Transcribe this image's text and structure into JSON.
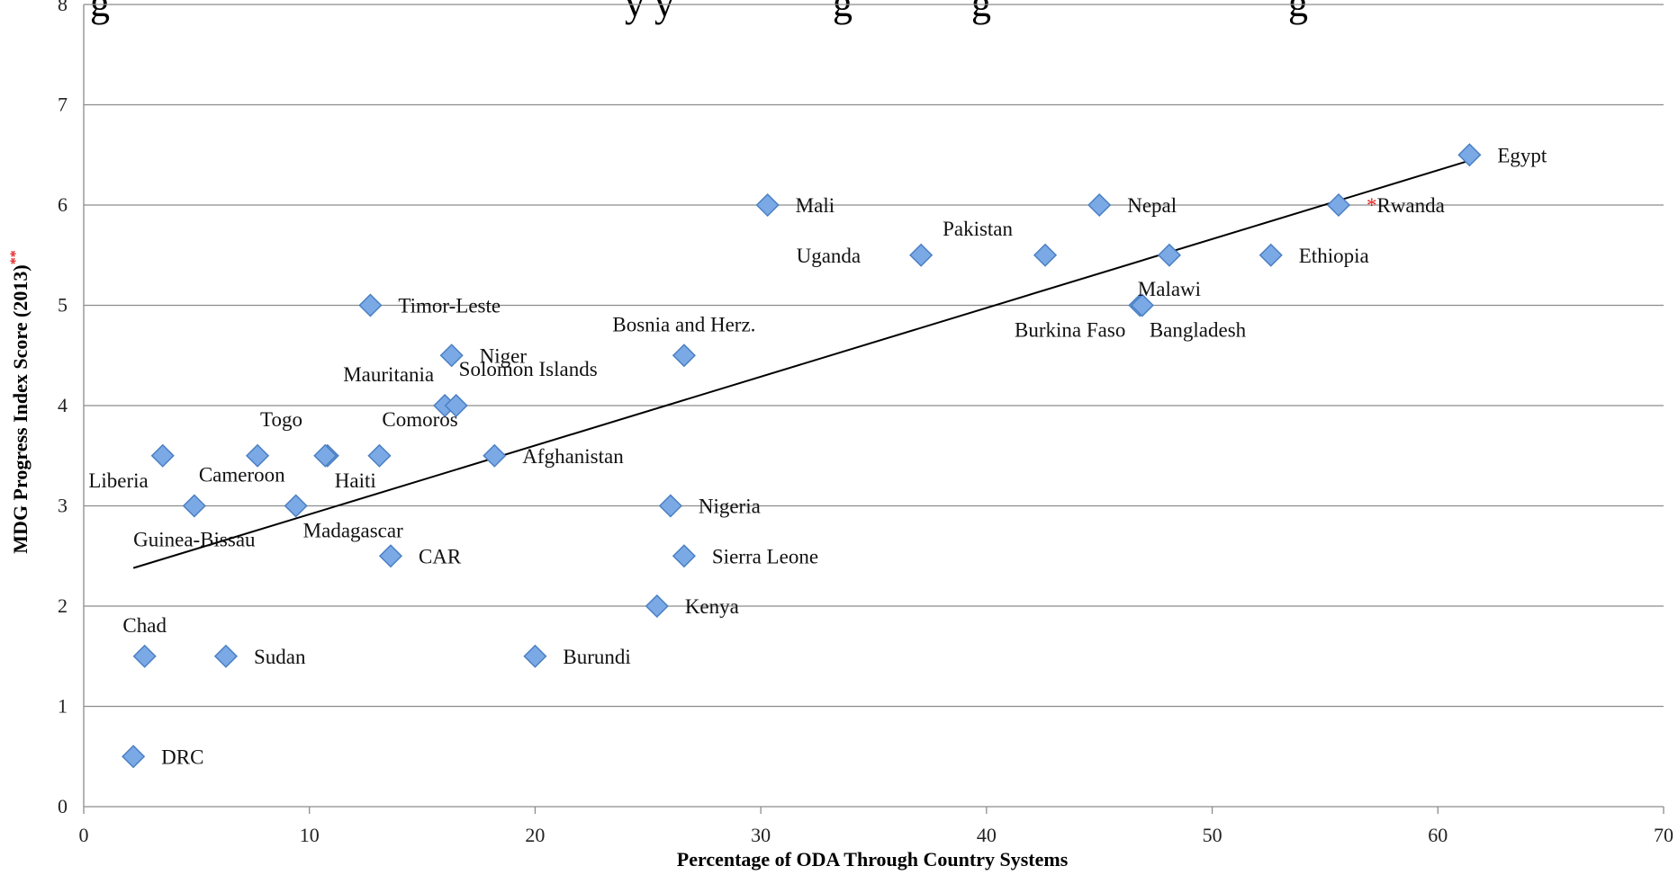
{
  "chart_data": {
    "type": "scatter",
    "title_partial": "g                                                    y y                g            g                              g",
    "xlabel": "Percentage of ODA Through Country Systems",
    "ylabel": "MDG Progress Index Score (2013)",
    "ylabel_marker": "**",
    "xlim": [
      0,
      70
    ],
    "ylim": [
      0,
      8
    ],
    "xticks": [
      "0",
      "10",
      "20",
      "30",
      "40",
      "50",
      "60",
      "70"
    ],
    "yticks": [
      "0",
      "1",
      "2",
      "3",
      "4",
      "5",
      "6",
      "7",
      "8"
    ],
    "grid": "horizontal",
    "colors": {
      "marker_fill": "#7aa9e6",
      "marker_stroke": "#4a7fc2",
      "gridline": "#8c8c8c",
      "trendline": "#000000",
      "asterisk": "#e02020"
    },
    "trendline": {
      "x": [
        2.2,
        61.5
      ],
      "y": [
        2.38,
        6.45
      ]
    },
    "points": [
      {
        "label": "DRC",
        "x": 2.2,
        "y": 0.5,
        "label_pos": "right"
      },
      {
        "label": "Chad",
        "x": 2.7,
        "y": 1.5,
        "label_pos": "above"
      },
      {
        "label": "Sudan",
        "x": 6.3,
        "y": 1.5,
        "label_pos": "right"
      },
      {
        "label": "Burundi",
        "x": 20.0,
        "y": 1.5,
        "label_pos": "right"
      },
      {
        "label": "Liberia",
        "x": 3.5,
        "y": 3.5,
        "label_pos": "below-left"
      },
      {
        "label": "Guinea-Bissau",
        "x": 4.9,
        "y": 3.0,
        "label_pos": "below"
      },
      {
        "label": "Togo",
        "x": 7.7,
        "y": 3.5,
        "label_pos": "above-right"
      },
      {
        "label": "Cameroon",
        "x": 9.4,
        "y": 3.0,
        "label_pos": "above-left"
      },
      {
        "label": "Madagascar",
        "x": 9.4,
        "y": 3.0,
        "label_pos": "below-right",
        "hidden_marker": true
      },
      {
        "label": "Haiti",
        "x": 10.8,
        "y": 3.5,
        "label_pos": "below-right"
      },
      {
        "label": "",
        "x": 10.7,
        "y": 3.5,
        "label_pos": "none"
      },
      {
        "label": "Comoros",
        "x": 13.1,
        "y": 3.5,
        "label_pos": "above-right"
      },
      {
        "label": "CAR",
        "x": 13.6,
        "y": 2.5,
        "label_pos": "right"
      },
      {
        "label": "Timor-Leste",
        "x": 12.7,
        "y": 5.0,
        "label_pos": "right"
      },
      {
        "label": "Mauritania",
        "x": 16.0,
        "y": 4.0,
        "label_pos": "above-left"
      },
      {
        "label": "Solomon Islands",
        "x": 16.5,
        "y": 4.0,
        "label_pos": "above-right"
      },
      {
        "label": "Niger",
        "x": 16.3,
        "y": 4.5,
        "label_pos": "right"
      },
      {
        "label": "Afghanistan",
        "x": 18.2,
        "y": 3.5,
        "label_pos": "right"
      },
      {
        "label": "Kenya",
        "x": 25.4,
        "y": 2.0,
        "label_pos": "right"
      },
      {
        "label": "Nigeria",
        "x": 26.0,
        "y": 3.0,
        "label_pos": "right"
      },
      {
        "label": "Sierra Leone",
        "x": 26.6,
        "y": 2.5,
        "label_pos": "right"
      },
      {
        "label": "Bosnia and Herz.",
        "x": 26.6,
        "y": 4.5,
        "label_pos": "above"
      },
      {
        "label": "Mali",
        "x": 30.3,
        "y": 6.0,
        "label_pos": "right"
      },
      {
        "label": "Uganda",
        "x": 37.1,
        "y": 5.5,
        "label_pos": "far-left"
      },
      {
        "label": "Pakistan",
        "x": 42.6,
        "y": 5.5,
        "label_pos": "above-far-left"
      },
      {
        "label": "Nepal",
        "x": 45.0,
        "y": 6.0,
        "label_pos": "right"
      },
      {
        "label": "Burkina Faso",
        "x": 46.8,
        "y": 5.0,
        "label_pos": "below-left"
      },
      {
        "label": "Bangladesh",
        "x": 46.9,
        "y": 5.0,
        "label_pos": "below-right"
      },
      {
        "label": "Malawi",
        "x": 48.1,
        "y": 5.5,
        "label_pos": "below"
      },
      {
        "label": "Ethiopia",
        "x": 52.6,
        "y": 5.5,
        "label_pos": "right"
      },
      {
        "label": "Rwanda",
        "x": 55.6,
        "y": 6.0,
        "label_pos": "right",
        "label_marker": "*"
      },
      {
        "label": "Egypt",
        "x": 61.4,
        "y": 6.5,
        "label_pos": "right"
      }
    ]
  }
}
